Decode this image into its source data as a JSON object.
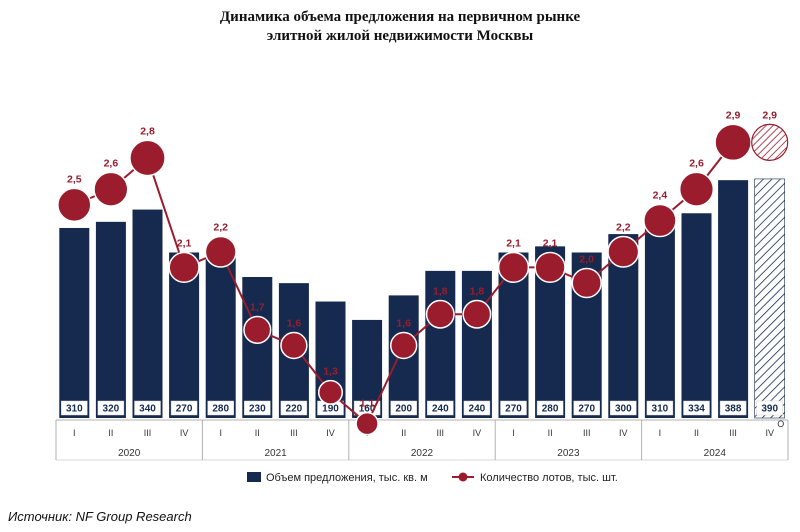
{
  "title_line1": "Динамика объема предложения на первичном рынке",
  "title_line2": "элитной жилой недвижимости Москвы",
  "source": "Источник: NF Group Research",
  "colors": {
    "bars": "#152a4e",
    "lots": "#9b1c2c",
    "axis": "#b0b0b0"
  },
  "chart_data": {
    "type": "bar",
    "categories": [
      "I",
      "II",
      "III",
      "IV",
      "I",
      "II",
      "III",
      "IV",
      "I",
      "II",
      "III",
      "IV",
      "I",
      "II",
      "III",
      "IV",
      "I",
      "II",
      "III",
      "IV"
    ],
    "years": [
      "2020",
      "2021",
      "2022",
      "2023",
      "2024"
    ],
    "series": [
      {
        "name": "Объем предложения, тыс. кв. м",
        "type": "bar",
        "values": [
          310,
          320,
          340,
          270,
          280,
          230,
          220,
          190,
          160,
          200,
          240,
          240,
          270,
          280,
          270,
          300,
          310,
          334,
          388,
          390
        ],
        "labels": [
          "310",
          "320",
          "340",
          "270",
          "280",
          "230",
          "220",
          "190",
          "160",
          "200",
          "240",
          "240",
          "270",
          "280",
          "270",
          "300",
          "310",
          "334",
          "388",
          "390"
        ]
      },
      {
        "name": "Количество лотов, тыс. шт.",
        "type": "line",
        "values": [
          2.5,
          2.6,
          2.8,
          2.1,
          2.2,
          1.7,
          1.6,
          1.3,
          1.1,
          1.6,
          1.8,
          1.8,
          2.1,
          2.1,
          2.0,
          2.2,
          2.4,
          2.6,
          2.9,
          2.9
        ],
        "labels": [
          "2,5",
          "2,6",
          "2,8",
          "2,1",
          "2,2",
          "1,7",
          "1,6",
          "1,3",
          "1,1",
          "1,6",
          "1,8",
          "1,8",
          "2,1",
          "2,1",
          "2,0",
          "2,2",
          "2,4",
          "2,6",
          "2,9",
          "2,9"
        ]
      }
    ],
    "last_point_note": "О",
    "legend_position": "bottom"
  }
}
